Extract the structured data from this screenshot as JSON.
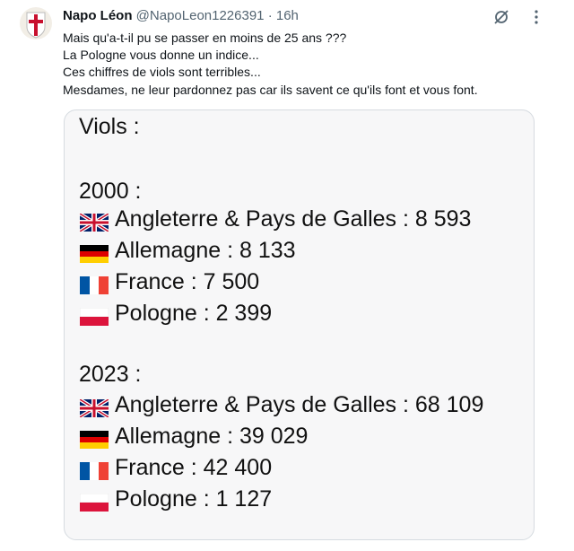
{
  "header": {
    "name": "Napo Léon",
    "handle": "@NapoLeon1226391",
    "separator": "·",
    "time": "16h"
  },
  "text": [
    "Mais qu'a-t-il pu se passer en moins de 25 ans ???",
    "La Pologne vous donne un indice...",
    "Ces chiffres de viols sont terribles...",
    "Mesdames, ne leur pardonnez pas car ils savent ce qu'ils font et vous font."
  ],
  "image": {
    "title": "Viols :",
    "sections": [
      {
        "year": "2000 :",
        "entries": [
          "Angleterre & Pays de Galles : 8 593",
          "Allemagne : 8 133",
          "France : 7 500",
          "Pologne : 2 399"
        ]
      },
      {
        "year": "2023 :",
        "entries": [
          "Angleterre & Pays de Galles : 68 109",
          "Allemagne : 39 029",
          "France : 42 400",
          "Pologne : 1 127"
        ]
      }
    ]
  }
}
